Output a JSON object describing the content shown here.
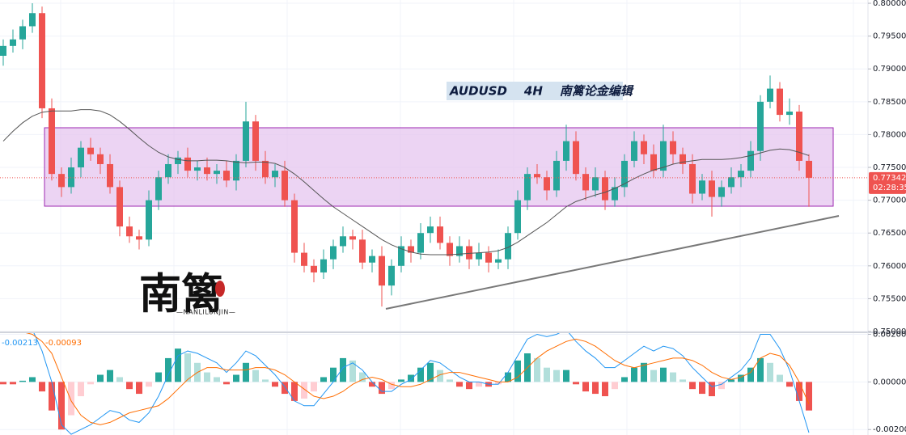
{
  "chart_data": [
    {
      "type": "candlestick",
      "title": "AUDUSD    4H    南篱论金编辑",
      "countdown": "02:28:35",
      "up_color": "#26a69a",
      "down_color": "#ef5350",
      "ylim": [
        0.75,
        0.8005
      ],
      "yticks": [
        {
          "value": 0.8,
          "label": "0.80000"
        },
        {
          "value": 0.795,
          "label": "0.79500"
        },
        {
          "value": 0.79,
          "label": "0.79000"
        },
        {
          "value": 0.785,
          "label": "0.78500"
        },
        {
          "value": 0.78,
          "label": "0.78000"
        },
        {
          "value": 0.775,
          "label": "0.77500"
        },
        {
          "value": 0.77,
          "label": "0.77000"
        },
        {
          "value": 0.765,
          "label": "0.76500"
        },
        {
          "value": 0.76,
          "label": "0.76000"
        },
        {
          "value": 0.755,
          "label": "0.75500"
        },
        {
          "value": 0.75,
          "label": "0.75000"
        }
      ],
      "grid": true,
      "open": [
        0.792,
        0.7935,
        0.7945,
        0.7965,
        0.7985,
        0.784,
        0.774,
        0.772,
        0.775,
        0.778,
        0.777,
        0.7755,
        0.772,
        0.766,
        0.7645,
        0.764,
        0.77,
        0.7735,
        0.7755,
        0.7765,
        0.7745,
        0.775,
        0.774,
        0.7745,
        0.773,
        0.776,
        0.782,
        0.776,
        0.7735,
        0.7745,
        0.77,
        0.762,
        0.76,
        0.759,
        0.761,
        0.763,
        0.7645,
        0.764,
        0.7605,
        0.7615,
        0.757,
        0.76,
        0.763,
        0.762,
        0.765,
        0.766,
        0.7635,
        0.7615,
        0.763,
        0.761,
        0.762,
        0.7605,
        0.761,
        0.765,
        0.77,
        0.774,
        0.7735,
        0.7715,
        0.776,
        0.779,
        0.774,
        0.7715,
        0.7735,
        0.77,
        0.772,
        0.776,
        0.779,
        0.777,
        0.7745,
        0.779,
        0.777,
        0.7755,
        0.771,
        0.773,
        0.7705,
        0.772,
        0.7735,
        0.7745,
        0.7775,
        0.785,
        0.787,
        0.783,
        0.7835,
        0.776
      ],
      "high": [
        0.7945,
        0.796,
        0.7975,
        0.8,
        0.7995,
        0.7855,
        0.775,
        0.7765,
        0.779,
        0.7795,
        0.778,
        0.777,
        0.773,
        0.7675,
        0.7655,
        0.7715,
        0.7745,
        0.777,
        0.7775,
        0.778,
        0.776,
        0.7765,
        0.7755,
        0.776,
        0.777,
        0.785,
        0.783,
        0.7775,
        0.7755,
        0.776,
        0.771,
        0.7635,
        0.761,
        0.7625,
        0.764,
        0.766,
        0.7655,
        0.7655,
        0.7625,
        0.763,
        0.761,
        0.7645,
        0.764,
        0.7665,
        0.7675,
        0.7675,
        0.7645,
        0.7645,
        0.764,
        0.7635,
        0.763,
        0.7625,
        0.766,
        0.7715,
        0.775,
        0.7755,
        0.7745,
        0.7775,
        0.7815,
        0.7805,
        0.775,
        0.775,
        0.7745,
        0.7735,
        0.777,
        0.7805,
        0.78,
        0.7785,
        0.7815,
        0.7805,
        0.778,
        0.777,
        0.774,
        0.7745,
        0.773,
        0.775,
        0.7755,
        0.779,
        0.786,
        0.789,
        0.788,
        0.7855,
        0.7845,
        0.777
      ],
      "low": [
        0.7905,
        0.7925,
        0.793,
        0.7955,
        0.7825,
        0.773,
        0.7705,
        0.771,
        0.7735,
        0.776,
        0.774,
        0.771,
        0.7645,
        0.7635,
        0.7625,
        0.763,
        0.7685,
        0.7725,
        0.774,
        0.7735,
        0.773,
        0.773,
        0.7725,
        0.772,
        0.7715,
        0.775,
        0.7745,
        0.7725,
        0.772,
        0.769,
        0.7605,
        0.759,
        0.7575,
        0.758,
        0.7595,
        0.762,
        0.7625,
        0.7595,
        0.759,
        0.7538,
        0.7555,
        0.759,
        0.7605,
        0.761,
        0.7635,
        0.7625,
        0.76,
        0.7605,
        0.7595,
        0.76,
        0.759,
        0.7595,
        0.7595,
        0.764,
        0.7685,
        0.7725,
        0.77,
        0.7705,
        0.7745,
        0.773,
        0.77,
        0.7705,
        0.7685,
        0.769,
        0.7705,
        0.775,
        0.7755,
        0.7735,
        0.7735,
        0.7755,
        0.774,
        0.7695,
        0.77,
        0.7675,
        0.769,
        0.771,
        0.772,
        0.7735,
        0.776,
        0.784,
        0.782,
        0.7815,
        0.7745,
        0.769
      ],
      "close": [
        0.7935,
        0.7945,
        0.7965,
        0.7985,
        0.784,
        0.774,
        0.772,
        0.775,
        0.778,
        0.777,
        0.7755,
        0.772,
        0.766,
        0.7645,
        0.764,
        0.77,
        0.7735,
        0.7755,
        0.7765,
        0.7745,
        0.775,
        0.774,
        0.7745,
        0.773,
        0.776,
        0.782,
        0.776,
        0.7735,
        0.7745,
        0.77,
        0.762,
        0.76,
        0.759,
        0.761,
        0.763,
        0.7645,
        0.764,
        0.7605,
        0.7615,
        0.757,
        0.76,
        0.763,
        0.762,
        0.765,
        0.766,
        0.7635,
        0.7615,
        0.763,
        0.761,
        0.762,
        0.7605,
        0.761,
        0.765,
        0.77,
        0.774,
        0.7735,
        0.7715,
        0.776,
        0.779,
        0.774,
        0.7715,
        0.7735,
        0.77,
        0.772,
        0.776,
        0.779,
        0.777,
        0.7745,
        0.779,
        0.777,
        0.7755,
        0.771,
        0.773,
        0.7705,
        0.772,
        0.7735,
        0.7745,
        0.7775,
        0.785,
        0.787,
        0.783,
        0.7835,
        0.776,
        0.77342
      ],
      "ma": {
        "color": "#555555",
        "values": [
          0.779,
          0.7805,
          0.7818,
          0.7828,
          0.7834,
          0.7836,
          0.7836,
          0.7836,
          0.7838,
          0.7838,
          0.7836,
          0.783,
          0.782,
          0.7808,
          0.7795,
          0.7783,
          0.7773,
          0.7766,
          0.7762,
          0.776,
          0.776,
          0.7761,
          0.7761,
          0.776,
          0.7758,
          0.7757,
          0.7758,
          0.7758,
          0.7756,
          0.775,
          0.774,
          0.7728,
          0.7715,
          0.7702,
          0.769,
          0.768,
          0.767,
          0.766,
          0.765,
          0.764,
          0.7632,
          0.7626,
          0.7621,
          0.7618,
          0.7617,
          0.7617,
          0.7617,
          0.7618,
          0.7619,
          0.762,
          0.7621,
          0.7623,
          0.7628,
          0.7636,
          0.7646,
          0.7656,
          0.7666,
          0.7678,
          0.769,
          0.7698,
          0.7703,
          0.7708,
          0.7712,
          0.7718,
          0.7725,
          0.7733,
          0.774,
          0.7746,
          0.775,
          0.7755,
          0.7758,
          0.776,
          0.7762,
          0.7762,
          0.7762,
          0.7763,
          0.7765,
          0.7768,
          0.7772,
          0.7776,
          0.7778,
          0.7777,
          0.7773,
          0.7768
        ]
      }
    },
    {
      "type": "macd",
      "ylim": [
        -0.00223,
        0.00205
      ],
      "yticks": [
        {
          "value": 0.002,
          "label": "0.00200"
        },
        {
          "value": 0,
          "label": "0.00000"
        },
        {
          "value": -0.002,
          "label": "-0.00200"
        }
      ],
      "histogram": {
        "colors": [
          "#26a69a",
          "#b2dfdb",
          "#ef5350",
          "#ffcdd2"
        ],
        "values": [
          -0.0001,
          -0.0001,
          5e-05,
          0.0002,
          -0.0004,
          -0.0012,
          -0.002,
          -0.0014,
          -0.0006,
          -0.0001,
          0.0003,
          0.0005,
          0.0002,
          -0.0003,
          -0.0005,
          -0.0002,
          0.0004,
          0.001,
          0.0014,
          0.0012,
          0.0008,
          0.0004,
          0.0002,
          -0.0001,
          0.0003,
          0.0008,
          0.0005,
          0.0001,
          -0.0002,
          -0.0005,
          -0.0008,
          -0.0007,
          -0.0004,
          0.0002,
          0.0006,
          0.001,
          0.0009,
          0.0004,
          -0.0002,
          -0.0005,
          -0.0003,
          0.0001,
          0.0003,
          0.0006,
          0.0008,
          0.0005,
          0.0001,
          -0.0002,
          -0.0003,
          -0.0002,
          -0.0002,
          -0.0001,
          0.0004,
          0.0009,
          0.0012,
          0.001,
          0.0006,
          0.0005,
          0.0005,
          -0.0001,
          -0.0004,
          -0.0005,
          -0.0006,
          -0.0003,
          0.0002,
          0.0006,
          0.0008,
          0.0005,
          0.0006,
          0.0004,
          0.0001,
          -0.0003,
          -0.0005,
          -0.0006,
          -0.0003,
          0.0001,
          0.0003,
          0.0006,
          0.001,
          0.0008,
          0.0003,
          -0.0002,
          -0.0008,
          -0.0012
        ]
      },
      "series": [
        {
          "color": "#2196f3",
          "values": [
            0.0021,
            0.0021,
            0.00215,
            0.0022,
            0.0013,
            0,
            -0.0018,
            -0.0022,
            -0.002,
            -0.0018,
            -0.0015,
            -0.0012,
            -0.0013,
            -0.0016,
            -0.0017,
            -0.0013,
            -0.0006,
            0.0003,
            0.0011,
            0.0013,
            0.0012,
            0.001,
            0.0008,
            0.0004,
            0.0008,
            0.0013,
            0.0011,
            0.0007,
            0.0003,
            -0.0002,
            -0.0008,
            -0.001,
            -0.001,
            -0.0005,
            0,
            0.0006,
            0.0008,
            0.0005,
            0,
            -0.0004,
            -0.0004,
            -0.0001,
            0.0001,
            0.0005,
            0.0009,
            0.0008,
            0.0005,
            0.0002,
            0,
            0,
            -0.0001,
            -0.0001,
            0.0004,
            0.0011,
            0.0018,
            0.002,
            0.0019,
            0.002,
            0.0022,
            0.0017,
            0.0013,
            0.001,
            0.0006,
            0.0006,
            0.0009,
            0.0012,
            0.0015,
            0.0013,
            0.0015,
            0.0014,
            0.0011,
            0.0006,
            0.0002,
            -0.0002,
            -0.0001,
            0.0002,
            0.0005,
            0.001,
            0.002,
            0.002,
            0.0014,
            0.0005,
            -0.0008,
            -0.00213
          ]
        },
        {
          "color": "#ff6d00",
          "values": [
            0.0022,
            0.0022,
            0.0021,
            0.002,
            0.0017,
            0.0012,
            0.0002,
            -0.0008,
            -0.0014,
            -0.0017,
            -0.0018,
            -0.0017,
            -0.0015,
            -0.0013,
            -0.0012,
            -0.0011,
            -0.001,
            -0.0007,
            -0.0003,
            0.0001,
            0.0004,
            0.0006,
            0.0006,
            0.0005,
            0.0005,
            0.0005,
            0.0006,
            0.0006,
            0.0005,
            0.0003,
            0,
            -0.0003,
            -0.0006,
            -0.0007,
            -0.0006,
            -0.0004,
            -0.0001,
            0.0001,
            0.0002,
            0.0001,
            -0.0001,
            -0.0002,
            -0.0002,
            -0.0001,
            0.0001,
            0.0003,
            0.0004,
            0.0004,
            0.0003,
            0.0002,
            0.0001,
            0,
            0,
            0.0002,
            0.0006,
            0.001,
            0.0013,
            0.0015,
            0.0017,
            0.0018,
            0.0017,
            0.0015,
            0.0012,
            0.0009,
            0.0007,
            0.0006,
            0.0007,
            0.0008,
            0.0009,
            0.001,
            0.001,
            0.0009,
            0.0007,
            0.0004,
            0.0002,
            0.0001,
            0.0002,
            0.0004,
            0.001,
            0.0012,
            0.0011,
            0.0007,
            0,
            -0.00093
          ]
        }
      ]
    }
  ],
  "watermark": {
    "text": "南篱",
    "subtext": "—NANLILUNJIN—"
  }
}
